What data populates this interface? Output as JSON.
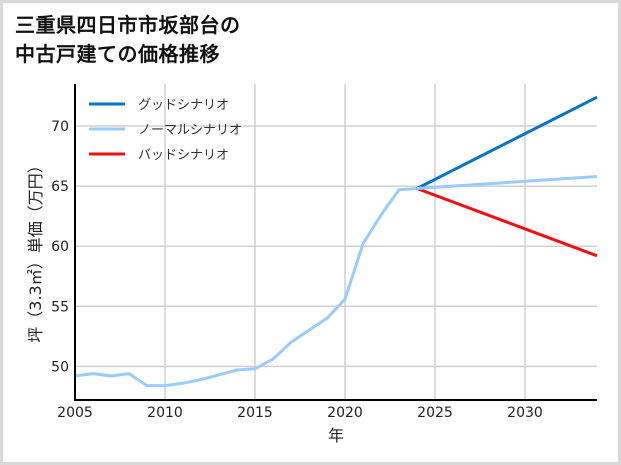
{
  "title": {
    "line1": "三重県四日市市坂部台の",
    "line2": "中古戸建ての価格推移"
  },
  "chart_data": {
    "type": "line",
    "title": "三重県四日市市坂部台の中古戸建ての価格推移",
    "xlabel": "年",
    "ylabel": "坪（3.3㎡）単価（万円）",
    "xlim": [
      2005,
      2034
    ],
    "ylim": [
      47.2,
      73.5
    ],
    "xticks": [
      2005,
      2010,
      2015,
      2020,
      2025,
      2030
    ],
    "yticks": [
      50,
      55,
      60,
      65,
      70
    ],
    "grid": true,
    "legend_position": "upper left",
    "historical": {
      "name": "ノーマルシナリオ",
      "x": [
        2005,
        2006,
        2007,
        2008,
        2009,
        2010,
        2011,
        2012,
        2013,
        2014,
        2015,
        2016,
        2017,
        2018,
        2019,
        2020,
        2021,
        2022,
        2023,
        2024
      ],
      "values": [
        49.2,
        49.4,
        49.2,
        49.4,
        48.4,
        48.4,
        48.6,
        48.9,
        49.3,
        49.7,
        49.8,
        50.6,
        52.0,
        53.0,
        54.0,
        55.6,
        60.2,
        62.6,
        64.7,
        64.8
      ]
    },
    "series": [
      {
        "name": "グッドシナリオ",
        "color": "#0a74c4",
        "x": [
          2024,
          2034
        ],
        "values": [
          64.8,
          72.4
        ]
      },
      {
        "name": "ノーマルシナリオ",
        "color": "#99ccff",
        "x": [
          2024,
          2034
        ],
        "values": [
          64.8,
          65.8
        ]
      },
      {
        "name": "バッドシナリオ",
        "color": "#ee1111",
        "x": [
          2024,
          2034
        ],
        "values": [
          64.8,
          59.2
        ]
      }
    ]
  },
  "legend": [
    {
      "label": "グッドシナリオ",
      "color": "#0a74c4"
    },
    {
      "label": "ノーマルシナリオ",
      "color": "#99ccff"
    },
    {
      "label": "バッドシナリオ",
      "color": "#ee1111"
    }
  ],
  "axes": {
    "xlabel": "年",
    "ylabel": "坪（3.3㎡）単価（万円）",
    "xticks": [
      "2005",
      "2010",
      "2015",
      "2020",
      "2025",
      "2030"
    ],
    "yticks": [
      "50",
      "55",
      "60",
      "65",
      "70"
    ]
  }
}
